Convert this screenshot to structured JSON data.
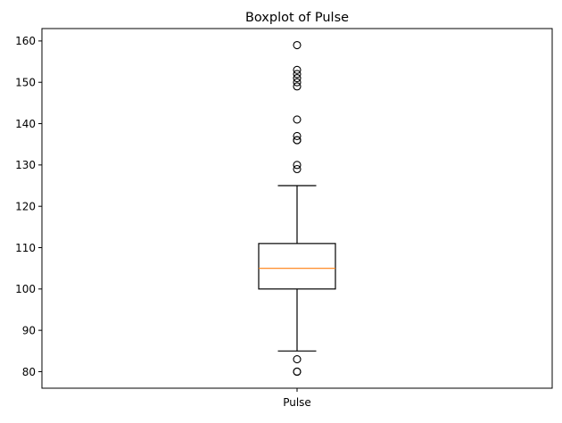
{
  "chart_data": {
    "type": "box",
    "title": "Boxplot of Pulse",
    "xlabel": "",
    "ylabel": "",
    "categories": [
      "Pulse"
    ],
    "ylim": [
      76,
      163
    ],
    "yticks": [
      80,
      90,
      100,
      110,
      120,
      130,
      140,
      150,
      160
    ],
    "grid": false,
    "series": [
      {
        "name": "Pulse",
        "whisker_low": 85,
        "q1": 100,
        "median": 105,
        "q3": 111,
        "whisker_high": 125,
        "outliers": [
          80,
          80,
          83,
          129,
          130,
          136,
          136,
          137,
          141,
          149,
          150,
          151,
          152,
          153,
          159
        ]
      }
    ],
    "colors": {
      "median": "#ff7f0e",
      "box": "#000000",
      "outlier": "#000000"
    }
  }
}
